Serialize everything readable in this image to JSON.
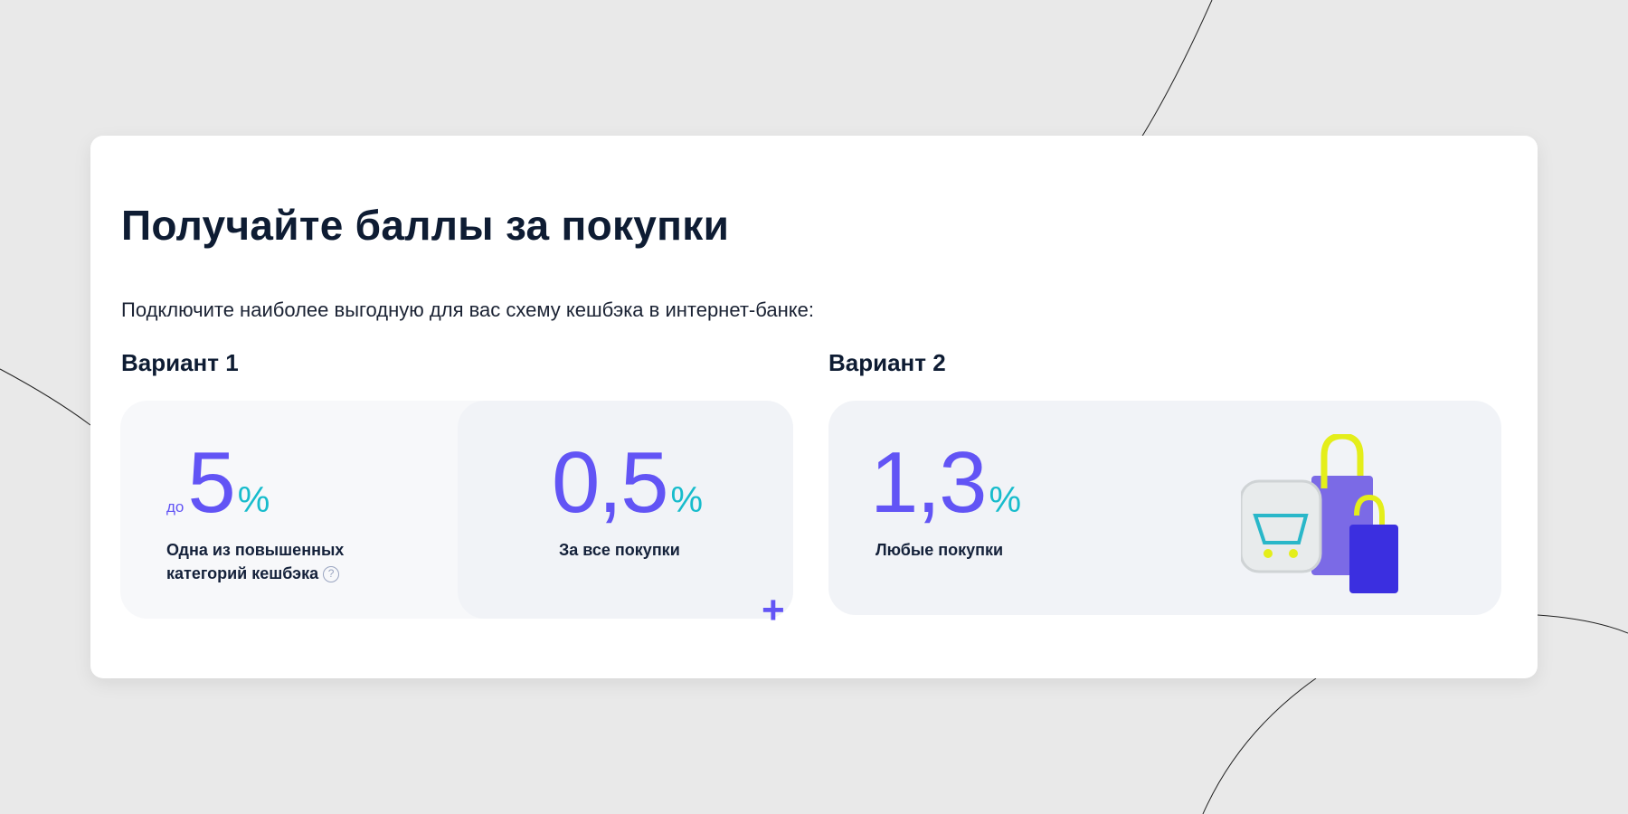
{
  "title": "Получайте баллы за покупки",
  "subtitle": "Подключите наиболее выгодную для вас схему кешбэка в интернет-банке:",
  "variant1": {
    "label": "Вариант 1",
    "left": {
      "prefix": "до",
      "value": "5",
      "unit": "%",
      "caption_line1": "Одна из повышенных",
      "caption_line2": "категорий кешбэка",
      "help": "?"
    },
    "right": {
      "value": "0,5",
      "unit": "%",
      "caption": "За все покупки"
    },
    "plus": "+"
  },
  "variant2": {
    "label": "Вариант 2",
    "value": "1,3",
    "unit": "%",
    "caption": "Любые покупки",
    "illustration": "shopping-bags-cart"
  },
  "colors": {
    "accent": "#6254f5",
    "percent": "#17bccc",
    "text": "#0e1c33"
  }
}
